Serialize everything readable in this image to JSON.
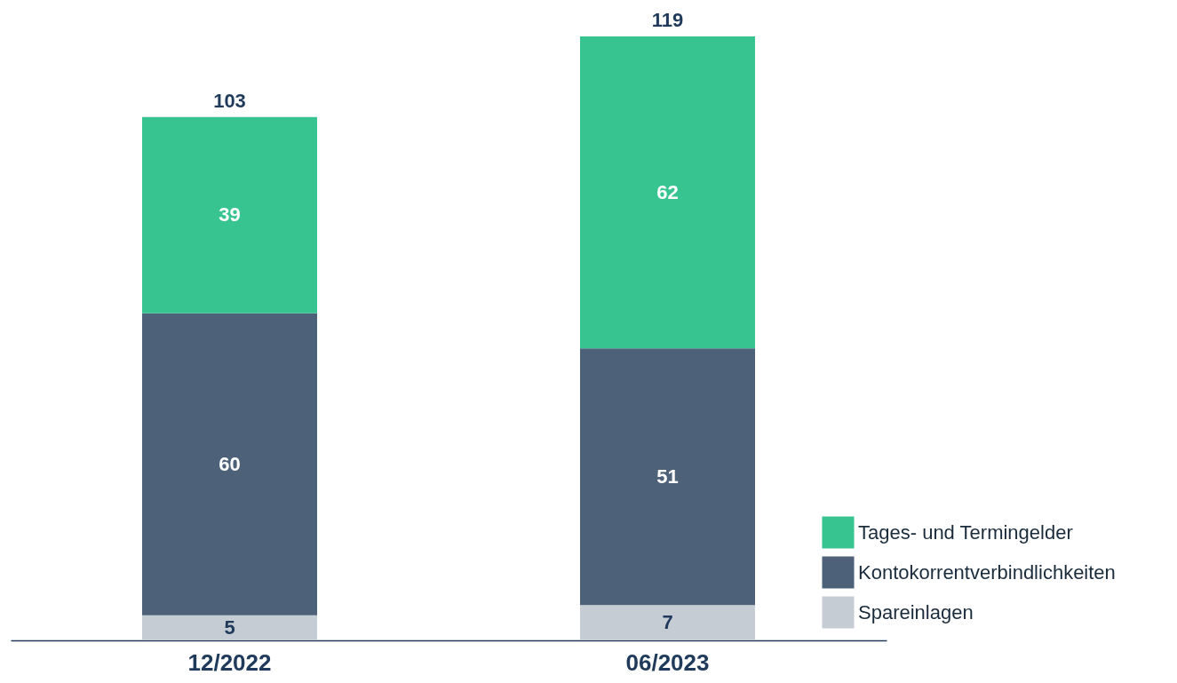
{
  "chart_data": {
    "type": "bar",
    "stacked": true,
    "categories": [
      "12/2022",
      "06/2023"
    ],
    "series": [
      {
        "name": "Spareinlagen",
        "color": "#c5ccd4",
        "values": [
          5,
          7
        ]
      },
      {
        "name": "Kontokorrentverbindlichkeiten",
        "color": "#4d6179",
        "values": [
          60,
          51
        ]
      },
      {
        "name": "Tages- und Termingelder",
        "color": "#37c491",
        "values": [
          39,
          62
        ]
      }
    ],
    "data_labels": true,
    "totals": [
      "103",
      "119"
    ],
    "legend": "bottom right"
  }
}
